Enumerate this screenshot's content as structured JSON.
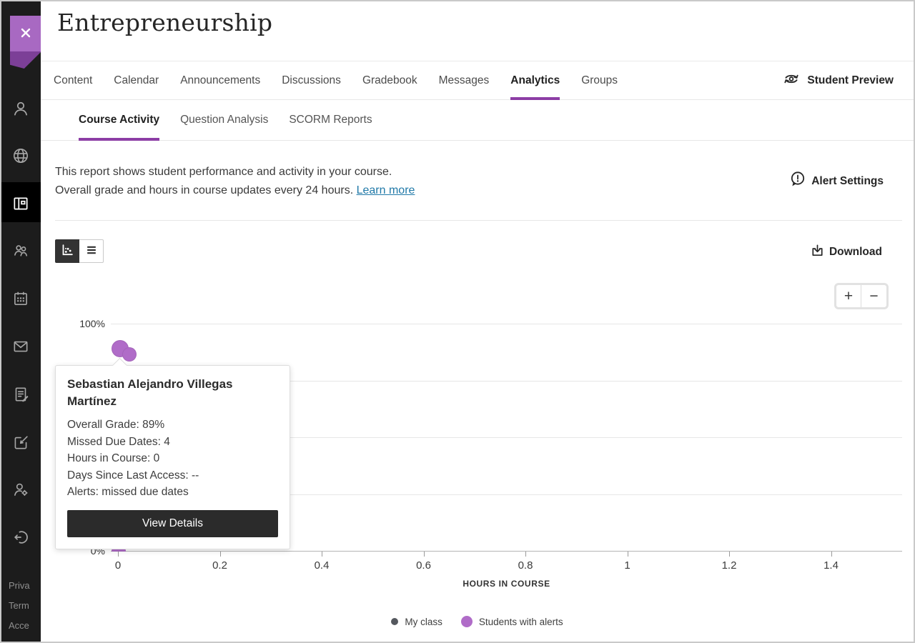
{
  "colors": {
    "accent_purple": "#8c3da5",
    "ribbon_purple": "#a869c2",
    "ribbon_fold_purple": "#7c3f97",
    "alert_dot_purple": "#b06cc8",
    "my_class_gray": "#54585e",
    "link_blue": "#2079a8",
    "rail_black": "#1c1c1c",
    "dark_button": "#2b2b2b"
  },
  "sidebar": {
    "icons": [
      {
        "name": "profile"
      },
      {
        "name": "globe"
      },
      {
        "name": "courses",
        "active": true
      },
      {
        "name": "organizations"
      },
      {
        "name": "calendar"
      },
      {
        "name": "messages"
      },
      {
        "name": "grades"
      },
      {
        "name": "activity"
      },
      {
        "name": "admin"
      },
      {
        "name": "sign-out"
      }
    ],
    "footer_links": [
      {
        "label": "Priva"
      },
      {
        "label": "Term"
      },
      {
        "label": "Acce"
      }
    ]
  },
  "header": {
    "title": "Entrepreneurship"
  },
  "nav": {
    "tabs": [
      {
        "label": "Content"
      },
      {
        "label": "Calendar"
      },
      {
        "label": "Announcements"
      },
      {
        "label": "Discussions"
      },
      {
        "label": "Gradebook"
      },
      {
        "label": "Messages"
      },
      {
        "label": "Analytics",
        "active": true
      },
      {
        "label": "Groups"
      }
    ],
    "student_preview_label": "Student Preview"
  },
  "subnav": {
    "tabs": [
      {
        "label": "Course Activity",
        "active": true
      },
      {
        "label": "Question Analysis"
      },
      {
        "label": "SCORM Reports"
      }
    ]
  },
  "report_info": {
    "line1": "This report shows student performance and activity in your course.",
    "line2": "Overall grade and hours in course updates every 24 hours.",
    "learn_more_label": "Learn more",
    "alert_settings_label": "Alert Settings"
  },
  "toolbar": {
    "view_toggle": [
      {
        "icon": "scatter-chart-icon",
        "active": true
      },
      {
        "icon": "list-icon",
        "active": false
      }
    ],
    "download_label": "Download",
    "zoom_in_label": "+",
    "zoom_out_label": "−"
  },
  "chart_data": {
    "type": "scatter",
    "xlabel": "HOURS IN COURSE",
    "xlim": [
      0,
      1.54
    ],
    "ylim": [
      0,
      100
    ],
    "x_ticks": [
      {
        "value": 0,
        "label": "0"
      },
      {
        "value": 0.2,
        "label": "0.2"
      },
      {
        "value": 0.4,
        "label": "0.4"
      },
      {
        "value": 0.6,
        "label": "0.6"
      },
      {
        "value": 0.8,
        "label": "0.8"
      },
      {
        "value": 1,
        "label": "1"
      },
      {
        "value": 1.2,
        "label": "1.2"
      },
      {
        "value": 1.4,
        "label": "1.4"
      }
    ],
    "y_labels": [
      {
        "value": 100,
        "label": "100%"
      },
      {
        "value": 0,
        "label": "0%"
      }
    ],
    "gridline_values": [
      100,
      75,
      50,
      25,
      0
    ],
    "series": [
      {
        "name": "My class",
        "color": "#54585e",
        "points": []
      },
      {
        "name": "Students with alerts",
        "color": "#b06cc8",
        "points": [
          {
            "x": 0.004,
            "y": 89,
            "r": 12,
            "student": "Sebastian Alejandro Villegas Martínez"
          },
          {
            "x": 0.023,
            "y": 86.5,
            "r": 10
          },
          {
            "x": 0.001,
            "y": 0,
            "r": 10
          }
        ]
      }
    ],
    "legend": [
      {
        "label": "My class",
        "color": "#54585e",
        "size": 10
      },
      {
        "label": "Students with alerts",
        "color": "#b06cc8",
        "size": 16
      }
    ]
  },
  "tooltip": {
    "name": "Sebastian Alejandro Villegas Martínez",
    "rows": [
      {
        "text": "Overall Grade: 89%"
      },
      {
        "text": "Missed Due Dates: 4"
      },
      {
        "text": "Hours in Course: 0"
      },
      {
        "text": "Days Since Last Access: --"
      },
      {
        "text": "Alerts: missed due dates"
      }
    ],
    "button_label": "View Details"
  }
}
